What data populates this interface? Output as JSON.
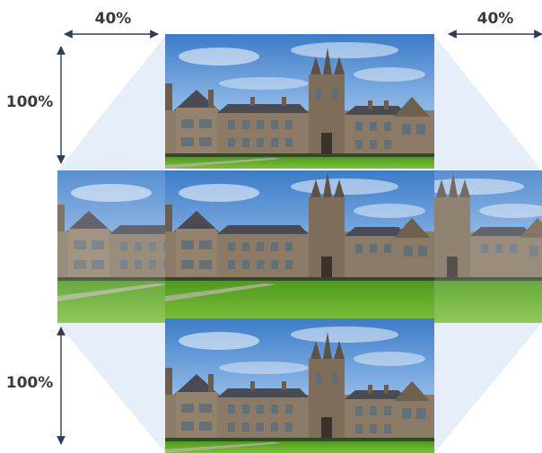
{
  "labels": {
    "left_width": "40%",
    "right_width": "40%",
    "top_height": "100%",
    "bottom_height": "100%"
  },
  "colors": {
    "trapezoid_fill": "#e6eef9",
    "arrow": "#2f3e56",
    "sky_top": "#3d7cc9",
    "sky_bottom": "#cfe1f4",
    "building": "#8a7a66",
    "building_dark": "#5e5244",
    "roof": "#4a4a52",
    "lawn": "#69b52c",
    "lawn_dark": "#4f9a1e"
  },
  "icons": [
    "double-arrow-horizontal-icon",
    "double-arrow-vertical-icon"
  ]
}
